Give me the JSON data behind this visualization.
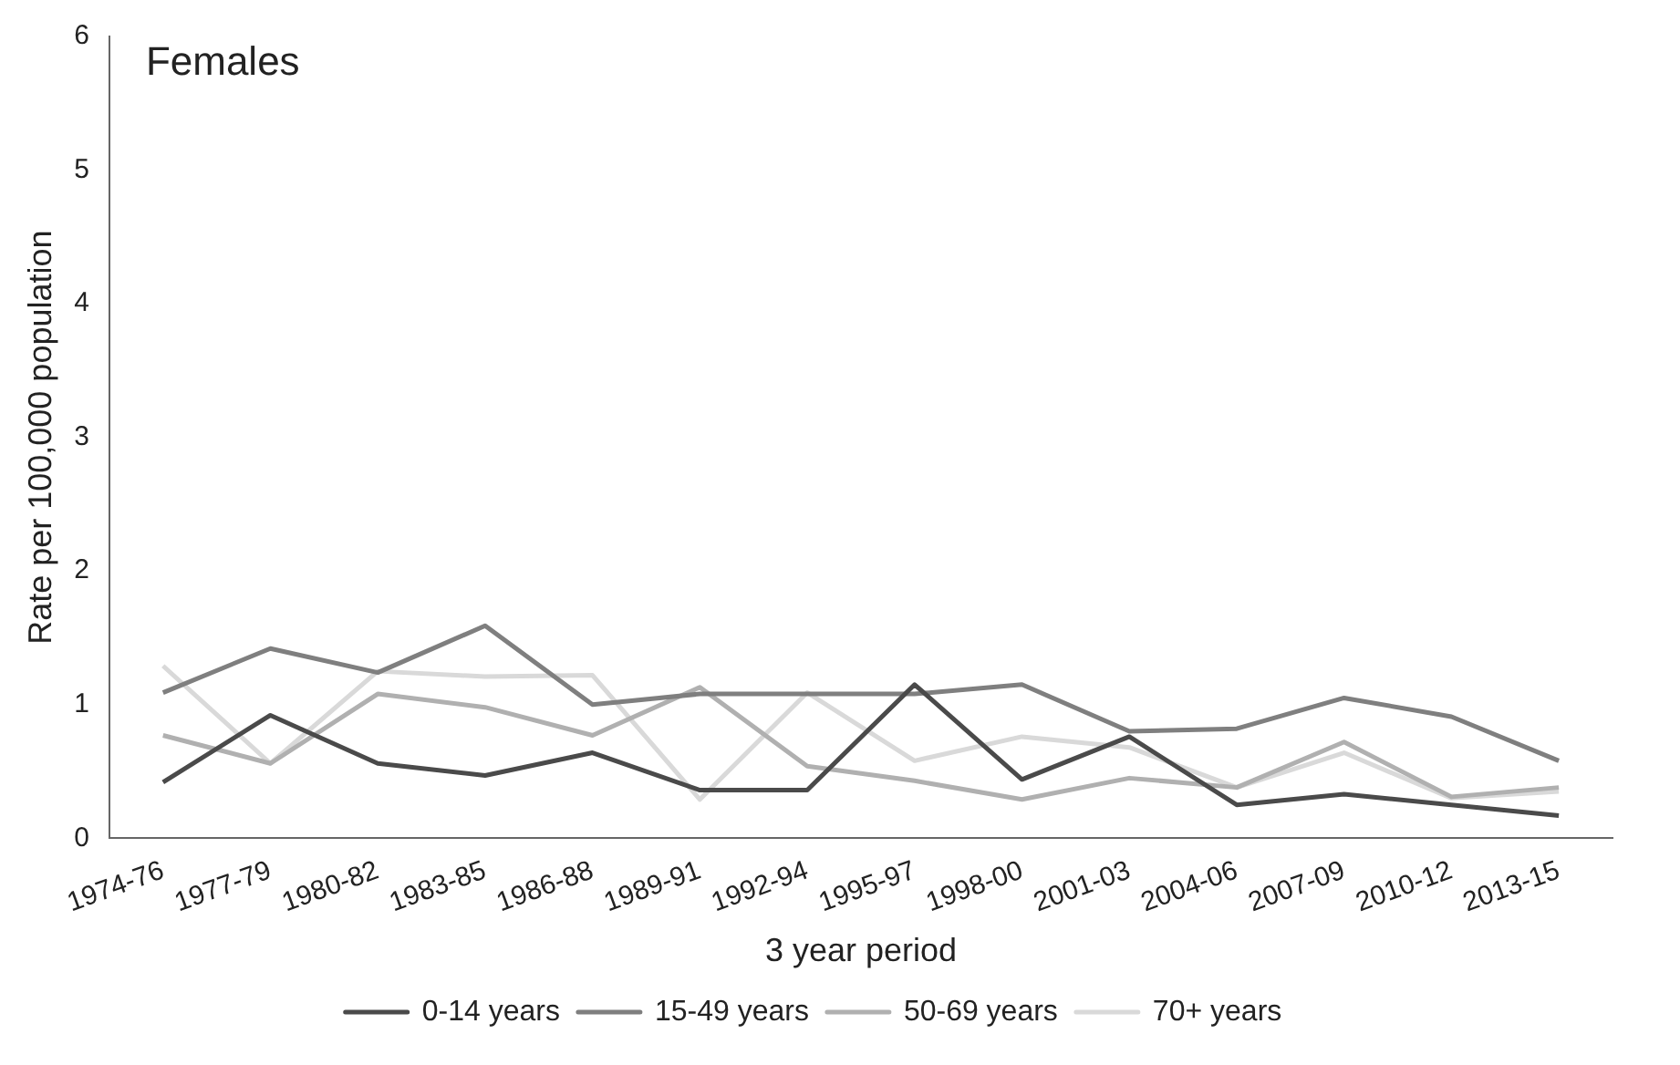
{
  "chart_data": {
    "type": "line",
    "title": "Females",
    "xlabel": "3 year period",
    "ylabel": "Rate per 100,000 population",
    "categories": [
      "1974-76",
      "1977-79",
      "1980-82",
      "1983-85",
      "1986-88",
      "1989-91",
      "1992-94",
      "1995-97",
      "1998-00",
      "2001-03",
      "2004-06",
      "2007-09",
      "2010-12",
      "2013-15"
    ],
    "series": [
      {
        "name": "0-14 years",
        "color": "#4a4a4a",
        "values": [
          0.42,
          0.92,
          0.56,
          0.47,
          0.64,
          0.36,
          0.36,
          1.15,
          0.44,
          0.76,
          0.25,
          0.33,
          0.25,
          0.17
        ]
      },
      {
        "name": "15-49 years",
        "color": "#7f7f7f",
        "values": [
          1.09,
          1.42,
          1.24,
          1.59,
          1.0,
          1.08,
          1.08,
          1.08,
          1.15,
          0.8,
          0.82,
          1.05,
          0.91,
          0.58
        ]
      },
      {
        "name": "50-69 years",
        "color": "#b0b0b0",
        "values": [
          0.77,
          0.56,
          1.08,
          0.98,
          0.77,
          1.13,
          0.54,
          0.43,
          0.29,
          0.45,
          0.38,
          0.72,
          0.31,
          0.38
        ]
      },
      {
        "name": "70+ years",
        "color": "#d9d9d9",
        "values": [
          1.29,
          0.56,
          1.25,
          1.21,
          1.22,
          0.29,
          1.09,
          0.58,
          0.76,
          0.68,
          0.38,
          0.64,
          0.3,
          0.35
        ]
      }
    ],
    "ylim": [
      0,
      6
    ],
    "yticks": [
      0,
      1,
      2,
      3,
      4,
      5,
      6
    ],
    "grid": false,
    "legend": "bottom",
    "marker": "none",
    "line_style": "solid"
  }
}
